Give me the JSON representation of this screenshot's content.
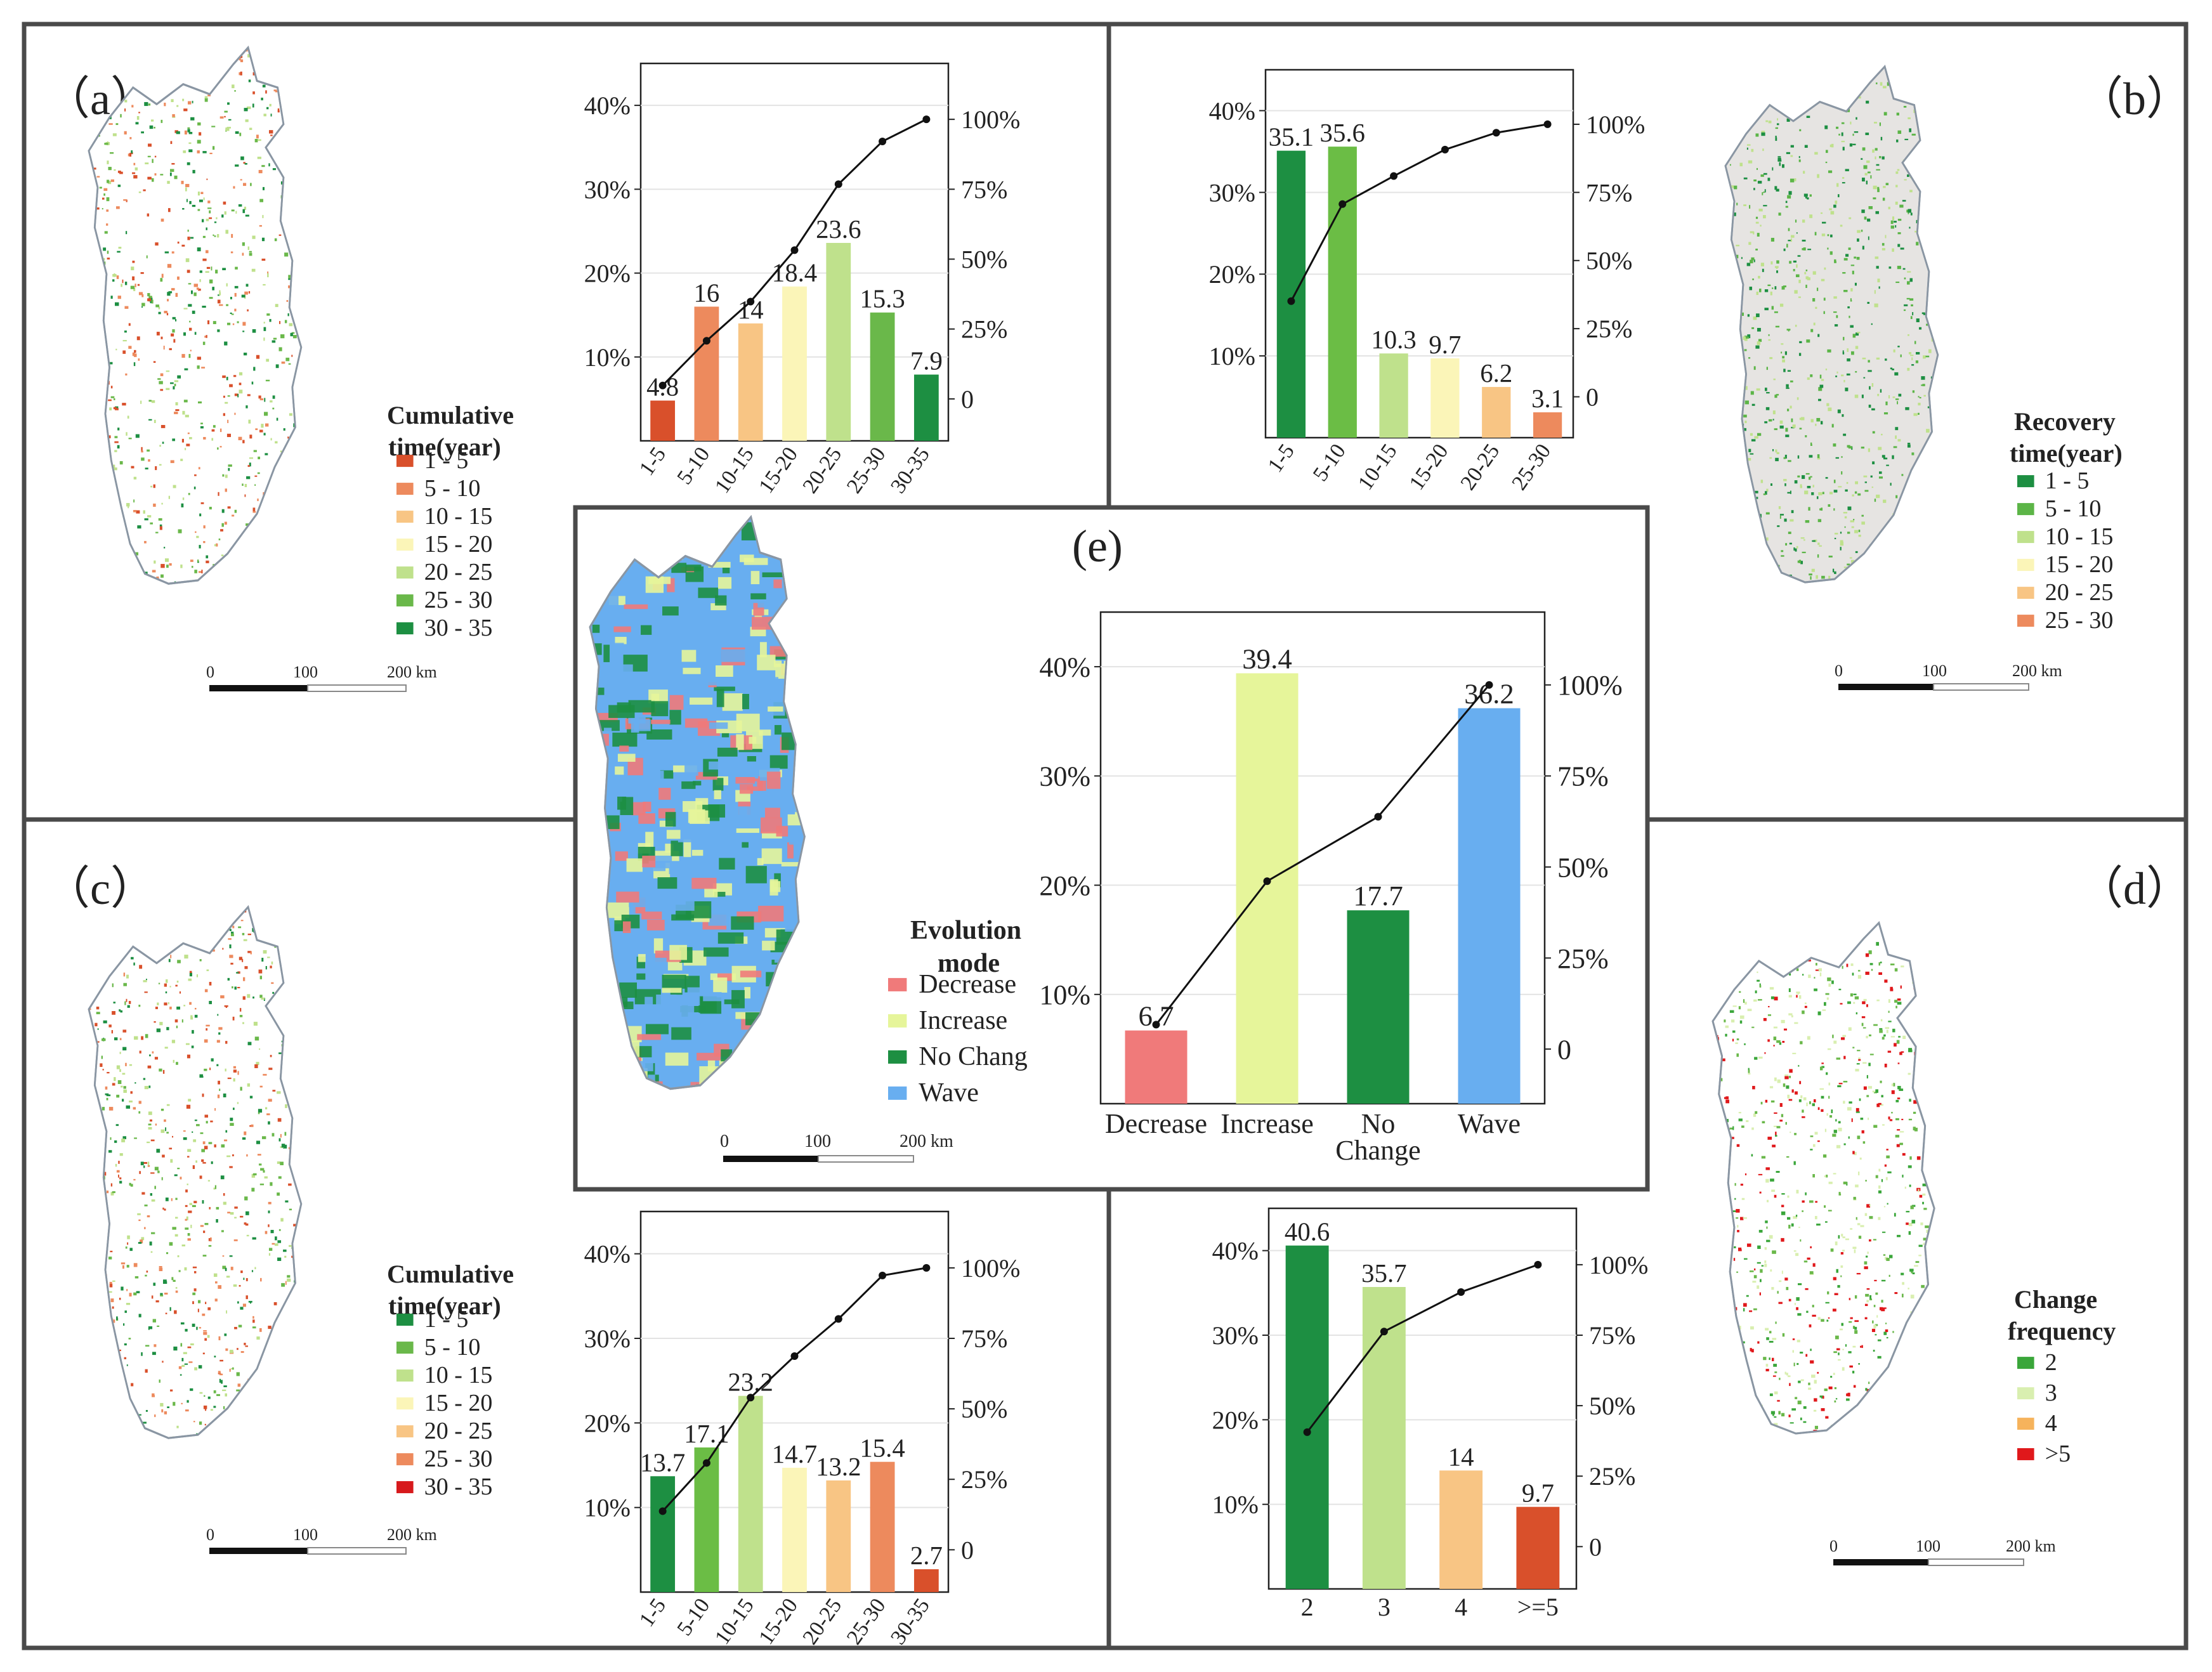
{
  "colors": {
    "frame": "#4a4a4a",
    "axis": "#222222",
    "grid": "#e3e3e3",
    "line": "#111111",
    "background_land": "#dcdcdc",
    "background_land_b": "#e6e4e2"
  },
  "panels": {
    "a": {
      "label": "（a）",
      "legend": {
        "title_line1": "Cumulative",
        "title_line2": "time(year)",
        "items": [
          {
            "label": "1 - 5",
            "color": "#d9502b"
          },
          {
            "label": "5 - 10",
            "color": "#ed8a5d"
          },
          {
            "label": "10 - 15",
            "color": "#f8c584"
          },
          {
            "label": "15 - 20",
            "color": "#fbf5b8"
          },
          {
            "label": "20 - 25",
            "color": "#bfe18c"
          },
          {
            "label": "25 - 30",
            "color": "#6ab84a"
          },
          {
            "label": "30 - 35",
            "color": "#1d8f42"
          }
        ]
      },
      "scale": {
        "ticks": [
          "0",
          "100",
          "200 km"
        ]
      },
      "map_colors": [
        "#d9502b",
        "#ed8a5d",
        "#bfe18c",
        "#6ab84a",
        "#1d8f42"
      ]
    },
    "b": {
      "label": "（b）",
      "legend": {
        "title_line1": "Recovery",
        "title_line2": "time(year)",
        "items": [
          {
            "label": "1 - 5",
            "color": "#1d8f42"
          },
          {
            "label": "5 - 10",
            "color": "#5cb547"
          },
          {
            "label": "10 - 15",
            "color": "#bfe18c"
          },
          {
            "label": "15 - 20",
            "color": "#fbf5b8"
          },
          {
            "label": "20 - 25",
            "color": "#f8c584"
          },
          {
            "label": "25 - 30",
            "color": "#ed8a5d"
          }
        ]
      },
      "scale": {
        "ticks": [
          "0",
          "100",
          "200 km"
        ]
      },
      "map_colors": [
        "#1d8f42",
        "#5cb547",
        "#bfe18c"
      ]
    },
    "c": {
      "label": "（c）",
      "legend": {
        "title_line1": "Cumulative",
        "title_line2": "time(year)",
        "items": [
          {
            "label": "1 - 5",
            "color": "#1d8f42"
          },
          {
            "label": "5 - 10",
            "color": "#6ab84a"
          },
          {
            "label": "10 - 15",
            "color": "#bfe18c"
          },
          {
            "label": "15 - 20",
            "color": "#fbf5b8"
          },
          {
            "label": "20 - 25",
            "color": "#f8c584"
          },
          {
            "label": "25 - 30",
            "color": "#ed8a5d"
          },
          {
            "label": "30 - 35",
            "color": "#d7191c"
          }
        ]
      },
      "scale": {
        "ticks": [
          "0",
          "100",
          "200 km"
        ]
      },
      "map_colors": [
        "#1d8f42",
        "#6ab84a",
        "#bfe18c",
        "#ed8a5d",
        "#d9502b"
      ]
    },
    "d": {
      "label": "（d）",
      "legend": {
        "title_line1": "Change",
        "title_line2": "frequency",
        "items": [
          {
            "label": "2",
            "color": "#3aa63a"
          },
          {
            "label": "3",
            "color": "#d9efb0"
          },
          {
            "label": "4",
            "color": "#f6b35c"
          },
          {
            "label": ">5",
            "color": "#e0181b"
          }
        ]
      },
      "scale": {
        "ticks": [
          "0",
          "100",
          "200 km"
        ]
      },
      "map_colors": [
        "#3aa63a",
        "#6ab84a",
        "#d9efb0",
        "#e0181b"
      ]
    },
    "e": {
      "label": "(e)",
      "legend": {
        "title_line1": "Evolution",
        "title_line2": "mode",
        "items": [
          {
            "label": "Decrease",
            "color": "#f07a7a"
          },
          {
            "label": "Increase",
            "color": "#e6f59a"
          },
          {
            "label": "No Chang",
            "color": "#1d8f42"
          },
          {
            "label": "Wave",
            "color": "#68aef0"
          }
        ]
      },
      "scale": {
        "ticks": [
          "0",
          "100",
          "200 km"
        ]
      },
      "map_colors": [
        "#68aef0",
        "#e6f59a",
        "#1d8f42",
        "#f07a7a"
      ]
    }
  },
  "chart_data": [
    {
      "id": "a",
      "type": "bar",
      "categories": [
        "1-5",
        "5-10",
        "10-15",
        "15-20",
        "20-25",
        "25-30",
        "30-35"
      ],
      "values": [
        4.8,
        16,
        14,
        18.4,
        23.6,
        15.3,
        7.9
      ],
      "value_labels": [
        "4.8",
        "16",
        "14",
        "18.4",
        "23.6",
        "15.3",
        "7.9"
      ],
      "bar_colors": [
        "#d9502b",
        "#ed8a5d",
        "#f8c584",
        "#fbf5b8",
        "#bfe18c",
        "#6ab84a",
        "#1d8f42"
      ],
      "cumulative": [
        4.8,
        20.8,
        34.8,
        53.2,
        76.8,
        92.1,
        100
      ],
      "left_ticks": [
        "10%",
        "20%",
        "30%",
        "40%"
      ],
      "ylim": [
        0,
        45
      ],
      "right_ticks": [
        "0",
        "25%",
        "50%",
        "75%",
        "100%"
      ],
      "y2lim": [
        -15,
        120
      ],
      "tick_rotation": "rotated"
    },
    {
      "id": "b",
      "type": "bar",
      "categories": [
        "1-5",
        "5-10",
        "10-15",
        "15-20",
        "20-25",
        "25-30"
      ],
      "values": [
        35.1,
        35.6,
        10.3,
        9.7,
        6.2,
        3.1
      ],
      "value_labels": [
        "35.1",
        "35.6",
        "10.3",
        "9.7",
        "6.2",
        "3.1"
      ],
      "bar_colors": [
        "#1d8f42",
        "#6bbd45",
        "#bfe18c",
        "#fbf5b8",
        "#f8c584",
        "#ed8a5d"
      ],
      "cumulative": [
        35.1,
        70.7,
        81,
        90.7,
        96.9,
        100
      ],
      "left_ticks": [
        "10%",
        "20%",
        "30%",
        "40%"
      ],
      "ylim": [
        0,
        45
      ],
      "right_ticks": [
        "0",
        "25%",
        "50%",
        "75%",
        "100%"
      ],
      "y2lim": [
        -15,
        120
      ],
      "tick_rotation": "rotated"
    },
    {
      "id": "c",
      "type": "bar",
      "categories": [
        "1-5",
        "5-10",
        "10-15",
        "15-20",
        "20-25",
        "25-30",
        "30-35"
      ],
      "values": [
        13.7,
        17.1,
        23.2,
        14.7,
        13.2,
        15.4,
        2.7
      ],
      "value_labels": [
        "13.7",
        "17.1",
        "23.2",
        "14.7",
        "13.2",
        "15.4",
        "2.7"
      ],
      "bar_colors": [
        "#1d8f42",
        "#6bbd45",
        "#bfe18c",
        "#fbf5b8",
        "#f8c584",
        "#ed8a5d",
        "#d9502b"
      ],
      "cumulative": [
        13.7,
        30.8,
        54,
        68.7,
        81.9,
        97.3,
        100
      ],
      "left_ticks": [
        "10%",
        "20%",
        "30%",
        "40%"
      ],
      "ylim": [
        0,
        45
      ],
      "right_ticks": [
        "0",
        "25%",
        "50%",
        "75%",
        "100%"
      ],
      "y2lim": [
        -15,
        120
      ],
      "tick_rotation": "rotated"
    },
    {
      "id": "d",
      "type": "bar",
      "categories": [
        "2",
        "3",
        "4",
        ">=5"
      ],
      "values": [
        40.6,
        35.7,
        14,
        9.7
      ],
      "value_labels": [
        "40.6",
        "35.7",
        "14",
        "9.7"
      ],
      "bar_colors": [
        "#1d8f42",
        "#bfe18c",
        "#f8c584",
        "#d9502b"
      ],
      "cumulative": [
        40.6,
        76.3,
        90.3,
        100
      ],
      "left_ticks": [
        "10%",
        "20%",
        "30%",
        "40%"
      ],
      "ylim": [
        0,
        45
      ],
      "right_ticks": [
        "0",
        "25%",
        "50%",
        "75%",
        "100%"
      ],
      "y2lim": [
        -15,
        120
      ],
      "tick_rotation": "horizontal"
    },
    {
      "id": "e",
      "type": "bar",
      "categories": [
        "Decrease",
        "Increase",
        "No Change",
        "Wave"
      ],
      "values": [
        6.7,
        39.4,
        17.7,
        36.2
      ],
      "value_labels": [
        "6.7",
        "39.4",
        "17.7",
        "36.2"
      ],
      "bar_colors": [
        "#f07a7a",
        "#e6f59a",
        "#1d8f42",
        "#68aef0"
      ],
      "cumulative": [
        6.7,
        46.1,
        63.8,
        100
      ],
      "left_ticks": [
        "10%",
        "20%",
        "30%",
        "40%"
      ],
      "ylim": [
        0,
        45
      ],
      "right_ticks": [
        "0",
        "25%",
        "50%",
        "75%",
        "100%"
      ],
      "y2lim": [
        -15,
        120
      ],
      "tick_rotation": "horizontal"
    }
  ]
}
